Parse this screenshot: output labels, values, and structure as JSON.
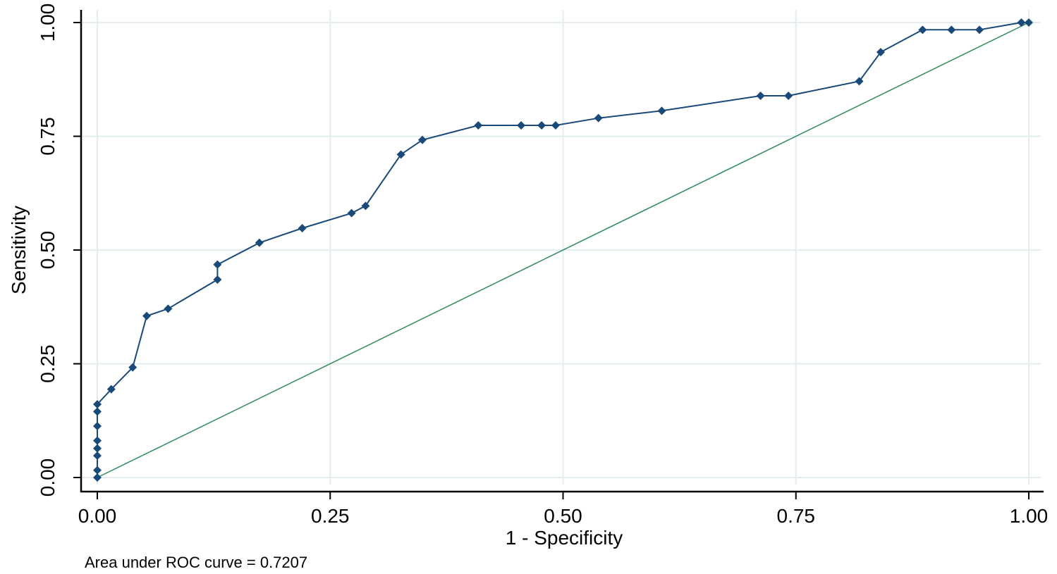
{
  "chart_data": {
    "type": "line",
    "xlabel": "1 - Specificity",
    "ylabel": "Sensitivity",
    "xlim": [
      0,
      1
    ],
    "ylim": [
      0,
      1
    ],
    "x_ticks": [
      0,
      0.25,
      0.5,
      0.75,
      1
    ],
    "y_ticks": [
      0,
      0.25,
      0.5,
      0.75,
      1
    ],
    "x_tick_labels": [
      "0.00",
      "0.25",
      "0.50",
      "0.75",
      "1.00"
    ],
    "y_tick_labels": [
      "0.00",
      "0.25",
      "0.50",
      "0.75",
      "1.00"
    ],
    "grid": true,
    "annotation": "Area under ROC curve = 0.7207",
    "colors": {
      "roc": "#1a4a7a",
      "reference": "#2e8b57",
      "grid": "#e4eeee",
      "axis": "#000000"
    },
    "series": [
      {
        "points": [
          [
            0,
            0
          ],
          [
            0,
            0.016
          ],
          [
            0,
            0.048
          ],
          [
            0,
            0.064
          ],
          [
            0,
            0.081
          ],
          [
            0,
            0.113
          ],
          [
            0,
            0.145
          ],
          [
            0,
            0.161
          ],
          [
            0.015,
            0.194
          ],
          [
            0.038,
            0.242
          ],
          [
            0.053,
            0.355
          ],
          [
            0.076,
            0.371
          ],
          [
            0.129,
            0.435
          ],
          [
            0.129,
            0.468
          ],
          [
            0.174,
            0.516
          ],
          [
            0.22,
            0.548
          ],
          [
            0.273,
            0.581
          ],
          [
            0.288,
            0.597
          ],
          [
            0.326,
            0.71
          ],
          [
            0.349,
            0.742
          ],
          [
            0.409,
            0.774
          ],
          [
            0.455,
            0.774
          ],
          [
            0.477,
            0.774
          ],
          [
            0.492,
            0.774
          ],
          [
            0.538,
            0.79
          ],
          [
            0.606,
            0.806
          ],
          [
            0.712,
            0.839
          ],
          [
            0.742,
            0.839
          ],
          [
            0.818,
            0.871
          ],
          [
            0.841,
            0.935
          ],
          [
            0.886,
            0.984
          ],
          [
            0.917,
            0.984
          ],
          [
            0.947,
            0.984
          ],
          [
            0.992,
            1.0
          ],
          [
            1.0,
            1.0
          ]
        ]
      },
      {
        "points": [
          [
            0,
            0
          ],
          [
            1,
            1
          ]
        ]
      }
    ]
  }
}
